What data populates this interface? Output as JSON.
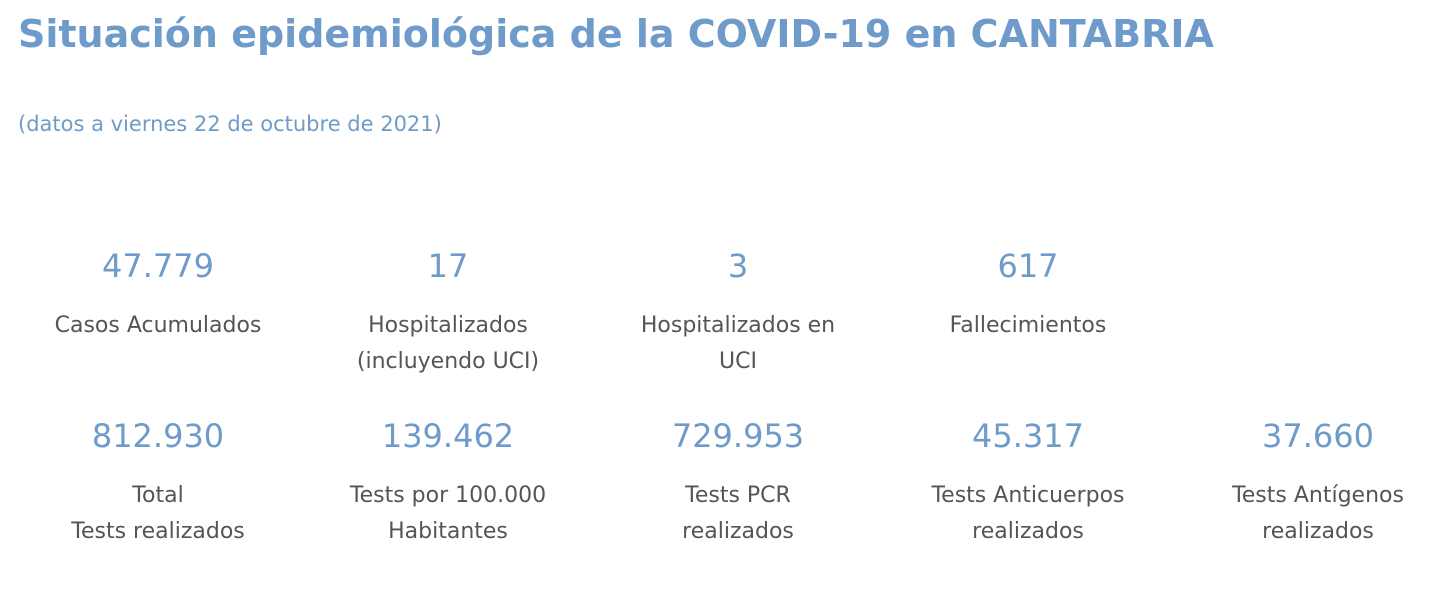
{
  "header": {
    "title": "Situación epidemiológica de la COVID-19 en CANTABRIA",
    "subtitle": "(datos a viernes 22 de octubre de 2021)"
  },
  "stats_row1": [
    {
      "value": "47.779",
      "label": "Casos Acumulados"
    },
    {
      "value": "17",
      "label": "Hospitalizados\n(incluyendo UCI)"
    },
    {
      "value": "3",
      "label": "Hospitalizados en\nUCI"
    },
    {
      "value": "617",
      "label": "Fallecimientos"
    }
  ],
  "stats_row2": [
    {
      "value": "812.930",
      "label": "Total\nTests realizados"
    },
    {
      "value": "139.462",
      "label": "Tests por 100.000\nHabitantes"
    },
    {
      "value": "729.953",
      "label": " Tests PCR\nrealizados"
    },
    {
      "value": "45.317",
      "label": "Tests Anticuerpos\nrealizados"
    },
    {
      "value": "37.660",
      "label": "Tests Antígenos\nrealizados"
    }
  ],
  "colors": {
    "accent": "#6e9bc9",
    "label_text": "#555555"
  }
}
